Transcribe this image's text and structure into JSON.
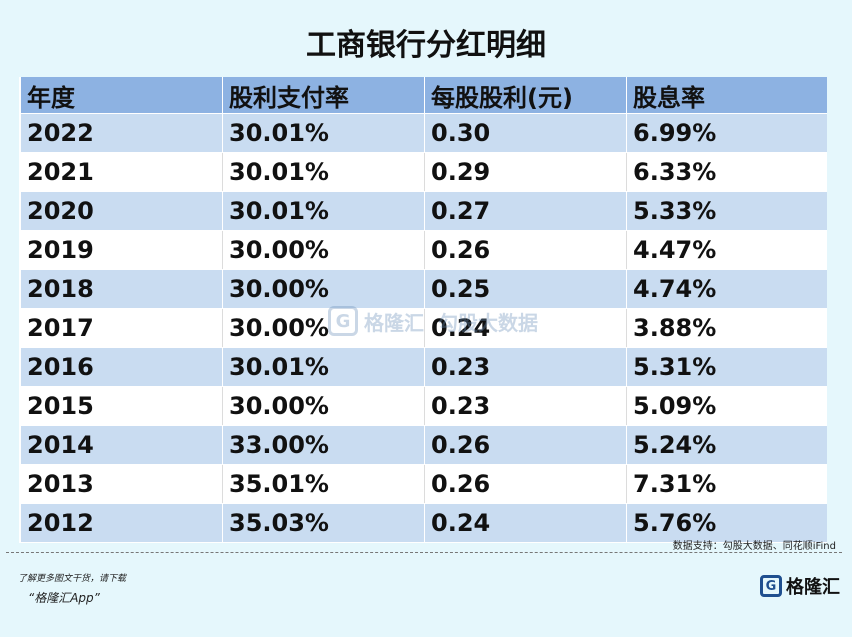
{
  "title": "工商银行分红明细",
  "chart_data": {
    "type": "table",
    "columns": [
      "年度",
      "股利支付率",
      "每股股利(元)",
      "股息率"
    ],
    "rows": [
      [
        "2022",
        "30.01%",
        "0.30",
        "6.99%"
      ],
      [
        "2021",
        "30.01%",
        "0.29",
        "6.33%"
      ],
      [
        "2020",
        "30.01%",
        "0.27",
        "5.33%"
      ],
      [
        "2019",
        "30.00%",
        "0.26",
        "4.47%"
      ],
      [
        "2018",
        "30.00%",
        "0.25",
        "4.74%"
      ],
      [
        "2017",
        "30.00%",
        "0.24",
        "3.88%"
      ],
      [
        "2016",
        "30.01%",
        "0.23",
        "5.31%"
      ],
      [
        "2015",
        "30.00%",
        "0.23",
        "5.09%"
      ],
      [
        "2014",
        "33.00%",
        "0.26",
        "5.24%"
      ],
      [
        "2013",
        "35.01%",
        "0.26",
        "7.31%"
      ],
      [
        "2012",
        "35.03%",
        "0.24",
        "5.76%"
      ]
    ]
  },
  "watermark": {
    "logo_letter": "G",
    "brand": "格隆汇",
    "data_brand": "勾股大数据"
  },
  "source": "数据支持：勾股大数据、同花顺iFind",
  "promo": {
    "line1": "了解更多图文干货，请下载",
    "line2": "“格隆汇App”"
  },
  "footer_logo": {
    "letter": "G",
    "text": "格隆汇"
  },
  "colors": {
    "header_bg": "#8db2e2",
    "stripe_bg": "#c9dcf1",
    "page_bg": "#e5f7fc"
  }
}
